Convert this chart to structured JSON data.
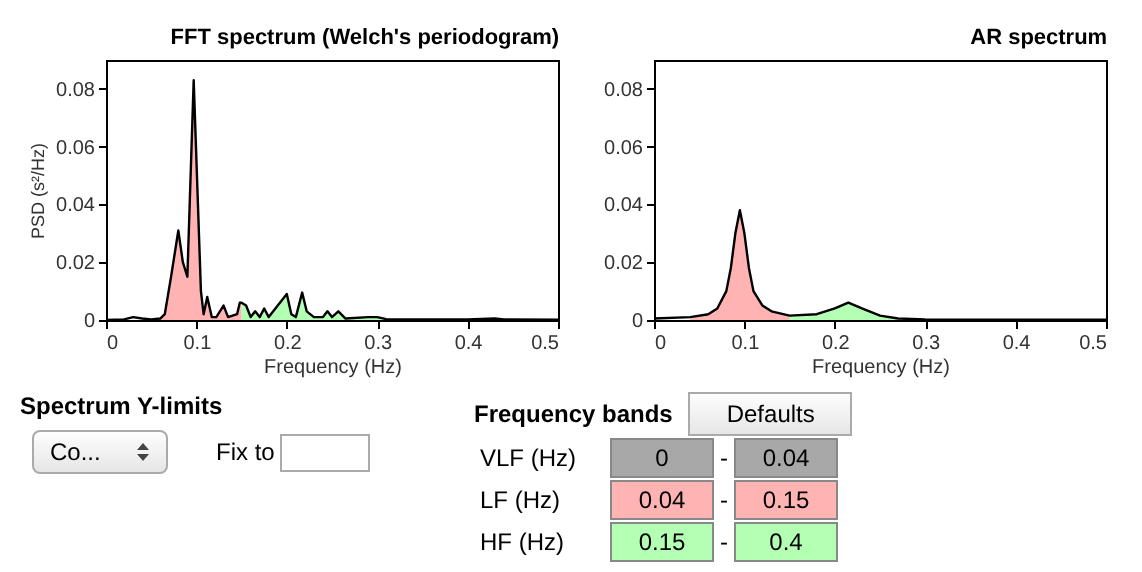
{
  "chart_data": [
    {
      "type": "area",
      "title": "FFT spectrum (Welch's periodogram)",
      "xlabel": "Frequency (Hz)",
      "ylabel": "PSD (s²/Hz)",
      "xlim": [
        0,
        0.5
      ],
      "xticks": [
        0,
        0.1,
        0.2,
        0.3,
        0.4,
        0.5
      ],
      "ylim": [
        0,
        0.09
      ],
      "yticks": [
        0,
        0.02,
        0.04,
        0.06,
        0.08
      ],
      "grid": false,
      "series": [
        {
          "type": "area",
          "color": "#ffb3b3",
          "x": [
            0.04,
            0.05,
            0.06,
            0.065,
            0.072,
            0.08,
            0.085,
            0.09,
            0.097,
            0.105,
            0.108,
            0.112,
            0.117,
            0.122,
            0.13,
            0.135,
            0.145,
            0.148,
            0.15
          ],
          "values": [
            0.0005,
            0.0002,
            0.0005,
            0.002,
            0.015,
            0.031,
            0.02,
            0.015,
            0.083,
            0.01,
            0.002,
            0.008,
            0.001,
            0.001,
            0.005,
            0.001,
            0.002,
            0.006,
            0.006
          ]
        },
        {
          "type": "area",
          "color": "#b3ffb3",
          "x": [
            0.15,
            0.155,
            0.16,
            0.165,
            0.17,
            0.175,
            0.18,
            0.19,
            0.2,
            0.205,
            0.21,
            0.217,
            0.222,
            0.23,
            0.24,
            0.245,
            0.25,
            0.257,
            0.265,
            0.29,
            0.3,
            0.31,
            0.35,
            0.4
          ],
          "values": [
            0.006,
            0.005,
            0.001,
            0.003,
            0.001,
            0.004,
            0.001,
            0.005,
            0.009,
            0.002,
            0.001,
            0.0095,
            0.003,
            0.001,
            0.001,
            0.003,
            0.001,
            0.003,
            0.0005,
            0.001,
            0.001,
            0.0003,
            0.0002,
            0.0002
          ]
        },
        {
          "type": "line",
          "color": "#000000",
          "x": [
            0,
            0.02,
            0.03,
            0.04,
            0.05,
            0.06,
            0.065,
            0.072,
            0.08,
            0.085,
            0.09,
            0.097,
            0.105,
            0.108,
            0.112,
            0.117,
            0.122,
            0.13,
            0.135,
            0.145,
            0.148,
            0.15,
            0.155,
            0.16,
            0.165,
            0.17,
            0.175,
            0.18,
            0.19,
            0.2,
            0.205,
            0.21,
            0.217,
            0.222,
            0.23,
            0.24,
            0.245,
            0.25,
            0.257,
            0.265,
            0.29,
            0.3,
            0.31,
            0.35,
            0.4,
            0.43,
            0.44,
            0.5
          ],
          "values": [
            0,
            0.0002,
            0.001,
            0.0005,
            0.0002,
            0.0005,
            0.002,
            0.015,
            0.031,
            0.02,
            0.015,
            0.083,
            0.01,
            0.002,
            0.008,
            0.001,
            0.001,
            0.005,
            0.001,
            0.002,
            0.006,
            0.006,
            0.005,
            0.001,
            0.003,
            0.001,
            0.004,
            0.001,
            0.005,
            0.009,
            0.002,
            0.001,
            0.0095,
            0.003,
            0.001,
            0.001,
            0.003,
            0.001,
            0.003,
            0.0005,
            0.001,
            0.001,
            0.0003,
            0.0002,
            0.0002,
            0.0005,
            0.0002,
            0.0001
          ]
        }
      ]
    },
    {
      "type": "area",
      "title": "AR spectrum",
      "xlabel": "Frequency (Hz)",
      "xlim": [
        0,
        0.5
      ],
      "xticks": [
        0,
        0.1,
        0.2,
        0.3,
        0.4,
        0.5
      ],
      "ylim": [
        0,
        0.09
      ],
      "yticks": [
        0,
        0.02,
        0.04,
        0.06,
        0.08
      ],
      "grid": false,
      "series": [
        {
          "type": "area",
          "color": "#ffb3b3",
          "x": [
            0.04,
            0.06,
            0.07,
            0.08,
            0.085,
            0.09,
            0.095,
            0.1,
            0.105,
            0.11,
            0.12,
            0.13,
            0.15
          ],
          "values": [
            0.001,
            0.002,
            0.004,
            0.01,
            0.018,
            0.03,
            0.038,
            0.03,
            0.018,
            0.01,
            0.005,
            0.003,
            0.0015
          ]
        },
        {
          "type": "area",
          "color": "#b3ffb3",
          "x": [
            0.15,
            0.18,
            0.2,
            0.215,
            0.23,
            0.25,
            0.27,
            0.3,
            0.4
          ],
          "values": [
            0.0015,
            0.002,
            0.004,
            0.006,
            0.004,
            0.0015,
            0.0005,
            0.0002,
            0.0001
          ]
        },
        {
          "type": "line",
          "color": "#000000",
          "x": [
            0,
            0.04,
            0.06,
            0.07,
            0.08,
            0.085,
            0.09,
            0.095,
            0.1,
            0.105,
            0.11,
            0.12,
            0.13,
            0.15,
            0.18,
            0.2,
            0.215,
            0.23,
            0.25,
            0.27,
            0.3,
            0.4,
            0.5
          ],
          "values": [
            0.0005,
            0.001,
            0.002,
            0.004,
            0.01,
            0.018,
            0.03,
            0.038,
            0.03,
            0.018,
            0.01,
            0.005,
            0.003,
            0.0015,
            0.002,
            0.004,
            0.006,
            0.004,
            0.0015,
            0.0005,
            0.0002,
            0.0001,
            0.0001
          ]
        }
      ]
    },
    {
      "type": "other",
      "title": "Spectrum Y-limits",
      "annotations": [
        "Co...",
        "Fix to"
      ]
    },
    {
      "type": "other",
      "title": "Frequency bands",
      "annotations": [
        "Defaults",
        "-",
        "0",
        "0.04",
        "0.04",
        "0.15",
        "0.15",
        "0.4"
      ],
      "categories": [
        "VLF (Hz)",
        "LF (Hz)",
        "HF (Hz)"
      ],
      "colors": [
        "#a8a8a8",
        "#ffb3b3",
        "#b3ffb3"
      ]
    }
  ]
}
